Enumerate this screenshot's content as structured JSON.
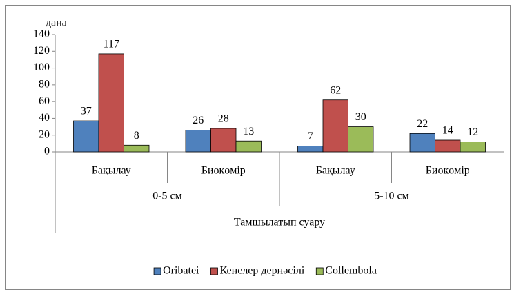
{
  "chart_data": {
    "type": "bar",
    "y_label": "дана",
    "categories": [
      "Бақылау",
      "Биокөмір",
      "Бақылау",
      "Биокөмір"
    ],
    "category_groups": [
      "0-5 см",
      "5-10 см"
    ],
    "category_supergroup": "Тамшылатып суару",
    "series": [
      {
        "name": "Oribatei",
        "color": "#4f81bd",
        "values": [
          37,
          26,
          7,
          22
        ]
      },
      {
        "name": "Кенелер дернәсілі",
        "color": "#c0504d",
        "values": [
          117,
          28,
          62,
          14
        ]
      },
      {
        "name": "Collembola",
        "color": "#9bbb59",
        "values": [
          8,
          13,
          30,
          12
        ]
      }
    ],
    "ylim": [
      0,
      140
    ],
    "yticks": [
      0,
      20,
      40,
      60,
      80,
      100,
      120,
      140
    ],
    "grid": false,
    "legend": "bottom"
  }
}
